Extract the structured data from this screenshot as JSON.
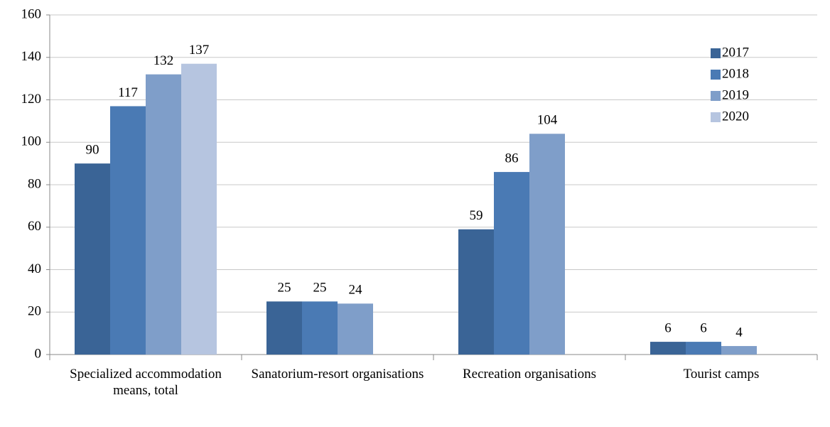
{
  "chart_data": {
    "type": "bar",
    "categories": [
      "Specialized accommodation means, total",
      "Sanatorium-resort organisations",
      "Recreation organisations",
      "Tourist camps"
    ],
    "series": [
      {
        "name": "2017",
        "color": "#3a6496",
        "values": [
          90,
          25,
          59,
          6
        ]
      },
      {
        "name": "2018",
        "color": "#4a7ab4",
        "values": [
          117,
          25,
          86,
          6
        ]
      },
      {
        "name": "2019",
        "color": "#7f9ec9",
        "values": [
          132,
          24,
          104,
          4
        ]
      },
      {
        "name": "2020",
        "color": "#b6c5e0",
        "values": [
          137,
          null,
          null,
          null
        ]
      }
    ],
    "ylim": [
      0,
      160
    ],
    "yticks": [
      0,
      20,
      40,
      60,
      80,
      100,
      120,
      140,
      160
    ],
    "grid": true,
    "legend": "upper right"
  }
}
